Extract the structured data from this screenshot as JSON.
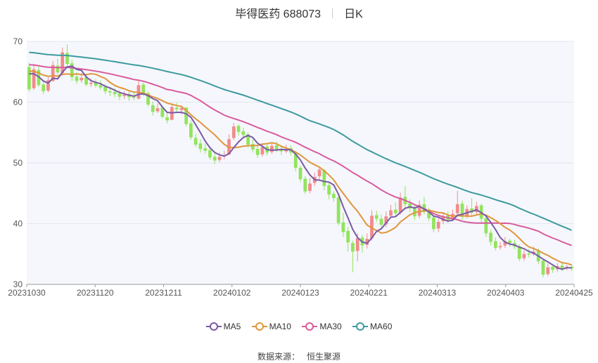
{
  "title": {
    "stock": "毕得医药 688073",
    "period": "日K"
  },
  "legend": [
    "MA5",
    "MA10",
    "MA30",
    "MA60"
  ],
  "source": {
    "label": "数据来源：",
    "value": "恒生聚源"
  },
  "colors": {
    "up": "#f28b8b",
    "down": "#91e45c",
    "ma5": "#7b5aa6",
    "ma10": "#e0963c",
    "ma30": "#d95c9c",
    "ma60": "#3d9a9f",
    "plotBg": "#f5f7fc",
    "grid": "#e3e6ef"
  },
  "chart_data": {
    "type": "candlestick",
    "ylim": [
      30,
      70
    ],
    "yticks": [
      30,
      40,
      50,
      60,
      70
    ],
    "xticks": [
      "20231030",
      "20231120",
      "20231211",
      "20240102",
      "20240123",
      "20240221",
      "20240313",
      "20240403",
      "20240425"
    ],
    "grid": true,
    "legend_position": "bottom",
    "candles": [
      [
        65.8,
        62.1,
        66.5,
        61.7
      ],
      [
        62.3,
        65.4,
        66.0,
        62.0
      ],
      [
        65.3,
        62.8,
        65.8,
        62.5
      ],
      [
        62.9,
        61.8,
        63.4,
        61.3
      ],
      [
        61.9,
        63.6,
        64.2,
        61.6
      ],
      [
        63.5,
        66.1,
        66.8,
        63.3
      ],
      [
        66.0,
        64.9,
        67.2,
        64.5
      ],
      [
        64.8,
        68.2,
        69.0,
        64.6
      ],
      [
        68.1,
        66.3,
        69.5,
        65.8
      ],
      [
        66.4,
        64.1,
        67.0,
        63.5
      ],
      [
        64.2,
        63.5,
        64.9,
        63.0
      ],
      [
        63.6,
        64.0,
        64.8,
        63.2
      ],
      [
        64.1,
        62.9,
        64.6,
        62.6
      ],
      [
        63.0,
        63.2,
        63.9,
        62.5
      ],
      [
        63.3,
        62.7,
        63.8,
        62.4
      ],
      [
        62.8,
        62.4,
        63.6,
        62.0
      ],
      [
        62.5,
        61.8,
        63.0,
        61.3
      ],
      [
        61.8,
        61.6,
        62.5,
        61.0
      ],
      [
        61.7,
        61.3,
        62.3,
        60.8
      ],
      [
        61.4,
        60.9,
        62.0,
        60.3
      ],
      [
        61.0,
        61.2,
        61.8,
        60.5
      ],
      [
        61.3,
        60.8,
        61.9,
        60.2
      ],
      [
        60.9,
        60.7,
        61.5,
        60.3
      ],
      [
        60.6,
        62.8,
        63.5,
        60.4
      ],
      [
        62.9,
        61.4,
        63.2,
        61.0
      ],
      [
        61.5,
        59.6,
        61.8,
        59.3
      ],
      [
        59.5,
        58.4,
        60.2,
        57.8
      ],
      [
        58.5,
        59.0,
        59.8,
        58.2
      ],
      [
        59.1,
        57.6,
        59.5,
        57.3
      ],
      [
        57.5,
        57.0,
        58.2,
        56.5
      ],
      [
        57.1,
        59.2,
        59.8,
        57.0
      ],
      [
        59.1,
        58.8,
        59.9,
        58.4
      ],
      [
        58.7,
        59.0,
        59.5,
        58.0
      ],
      [
        59.1,
        56.4,
        59.2,
        56.0
      ],
      [
        56.5,
        54.2,
        57.0,
        53.8
      ],
      [
        54.1,
        53.0,
        54.8,
        52.6
      ],
      [
        53.2,
        52.3,
        53.9,
        51.7
      ],
      [
        52.4,
        52.0,
        53.2,
        51.5
      ],
      [
        52.1,
        50.9,
        52.6,
        50.5
      ],
      [
        51.0,
        50.4,
        51.6,
        49.8
      ],
      [
        50.5,
        51.0,
        51.7,
        50.1
      ],
      [
        51.1,
        51.3,
        52.0,
        50.6
      ],
      [
        51.4,
        53.9,
        54.7,
        51.3
      ],
      [
        54.1,
        56.0,
        56.6,
        53.8
      ],
      [
        56.1,
        55.1,
        56.4,
        54.5
      ],
      [
        55.2,
        54.6,
        55.8,
        54.0
      ],
      [
        54.7,
        53.0,
        55.0,
        52.6
      ],
      [
        53.1,
        52.2,
        53.9,
        51.7
      ],
      [
        52.3,
        51.3,
        52.8,
        50.8
      ],
      [
        51.4,
        52.6,
        53.1,
        51.0
      ],
      [
        52.7,
        51.7,
        53.0,
        51.2
      ],
      [
        51.8,
        52.8,
        53.3,
        51.5
      ],
      [
        52.9,
        52.1,
        53.5,
        51.8
      ],
      [
        52.2,
        51.9,
        52.9,
        51.3
      ],
      [
        51.9,
        52.3,
        53.0,
        51.6
      ],
      [
        52.4,
        51.7,
        52.9,
        51.2
      ],
      [
        51.7,
        49.2,
        51.9,
        48.6
      ],
      [
        49.2,
        47.3,
        49.6,
        46.8
      ],
      [
        47.4,
        45.3,
        47.8,
        44.9
      ],
      [
        45.4,
        46.6,
        47.5,
        45.0
      ],
      [
        46.7,
        47.7,
        48.4,
        46.2
      ],
      [
        47.8,
        48.9,
        49.4,
        47.1
      ],
      [
        48.8,
        46.2,
        49.0,
        45.5
      ],
      [
        46.3,
        44.8,
        46.9,
        44.0
      ],
      [
        44.9,
        44.2,
        45.3,
        43.6
      ],
      [
        44.3,
        40.1,
        44.7,
        39.7
      ],
      [
        40.2,
        38.6,
        41.8,
        37.8
      ],
      [
        38.8,
        36.9,
        39.5,
        35.4
      ],
      [
        36.8,
        35.4,
        37.2,
        32.0
      ],
      [
        35.5,
        37.6,
        38.4,
        33.8
      ],
      [
        37.7,
        36.4,
        38.1,
        35.2
      ],
      [
        36.5,
        37.5,
        38.4,
        35.9
      ],
      [
        37.6,
        41.3,
        42.2,
        37.2
      ],
      [
        41.4,
        40.8,
        42.1,
        40.3
      ],
      [
        40.8,
        39.8,
        41.5,
        39.4
      ],
      [
        39.9,
        41.2,
        42.0,
        39.4
      ],
      [
        41.3,
        42.2,
        43.1,
        40.9
      ],
      [
        42.3,
        41.7,
        43.5,
        41.2
      ],
      [
        41.8,
        44.3,
        45.1,
        41.5
      ],
      [
        44.4,
        43.2,
        46.2,
        42.7
      ],
      [
        43.3,
        42.5,
        44.0,
        41.9
      ],
      [
        42.6,
        41.2,
        43.0,
        40.6
      ],
      [
        41.3,
        43.1,
        43.8,
        40.9
      ],
      [
        43.2,
        41.9,
        44.4,
        41.5
      ],
      [
        42.0,
        40.9,
        42.6,
        40.4
      ],
      [
        41.0,
        39.1,
        41.4,
        38.6
      ],
      [
        39.2,
        40.3,
        40.9,
        38.6
      ],
      [
        40.4,
        41.2,
        41.8,
        39.9
      ],
      [
        41.3,
        40.6,
        42.0,
        40.1
      ],
      [
        40.7,
        41.6,
        42.3,
        40.4
      ],
      [
        41.7,
        43.2,
        45.4,
        41.2
      ],
      [
        43.3,
        41.1,
        43.8,
        40.6
      ],
      [
        41.2,
        42.4,
        43.0,
        40.9
      ],
      [
        42.5,
        41.8,
        44.2,
        41.3
      ],
      [
        41.9,
        42.9,
        43.6,
        41.4
      ],
      [
        43.0,
        40.8,
        43.3,
        40.2
      ],
      [
        40.9,
        38.4,
        41.2,
        37.8
      ],
      [
        38.5,
        37.0,
        39.0,
        36.4
      ],
      [
        37.1,
        36.0,
        37.7,
        35.6
      ],
      [
        36.1,
        36.3,
        37.0,
        35.7
      ],
      [
        36.4,
        37.1,
        37.8,
        36.0
      ],
      [
        37.2,
        36.8,
        37.5,
        36.2
      ],
      [
        36.8,
        36.2,
        37.3,
        35.8
      ],
      [
        36.3,
        34.2,
        36.6,
        33.8
      ],
      [
        34.3,
        35.0,
        35.6,
        33.9
      ],
      [
        35.1,
        34.9,
        35.8,
        34.4
      ],
      [
        35.0,
        35.4,
        36.2,
        34.7
      ],
      [
        35.5,
        33.8,
        35.9,
        33.3
      ],
      [
        33.9,
        31.6,
        34.3,
        31.2
      ],
      [
        31.7,
        32.8,
        33.4,
        31.4
      ],
      [
        32.9,
        32.4,
        33.2,
        31.9
      ],
      [
        32.5,
        33.0,
        33.5,
        32.1
      ],
      [
        33.1,
        32.6,
        33.6,
        32.2
      ],
      [
        32.7,
        32.9,
        33.2,
        32.3
      ],
      [
        32.9,
        32.6,
        33.3,
        32.2
      ]
    ],
    "ma_initial": {
      "ma5": 65.3,
      "ma10": 65.4,
      "ma30": 66.3,
      "ma60": 68.3
    },
    "ma60_end": 38.9,
    "ma30_end": 36.4
  }
}
